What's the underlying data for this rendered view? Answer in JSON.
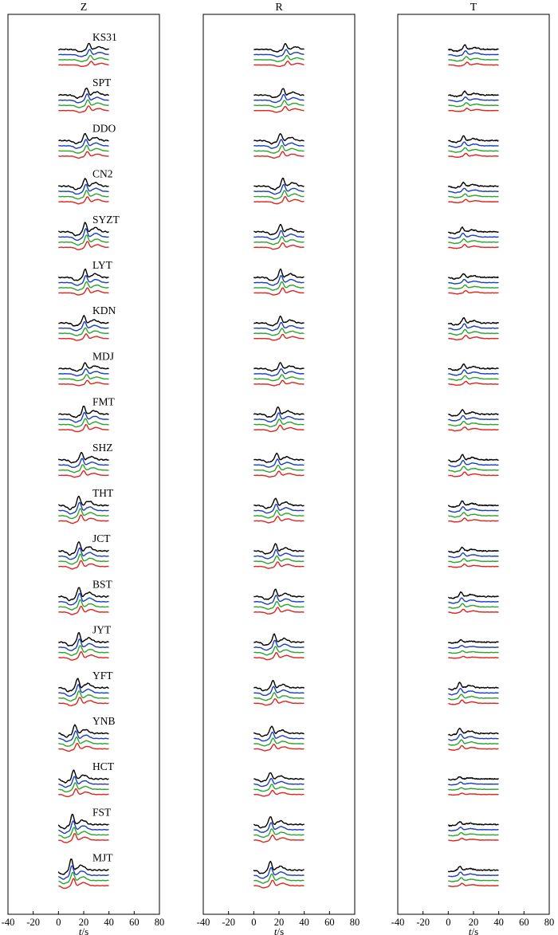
{
  "chart_data": {
    "type": "line",
    "description_units": "seconds",
    "panels": [
      {
        "title": "Z"
      },
      {
        "title": "R"
      },
      {
        "title": "T"
      }
    ],
    "xlabel_italic": "t",
    "xlabel_unit": "/s",
    "xlim": [
      -40,
      80
    ],
    "xticks": [
      "-40",
      "-20",
      "0",
      "20",
      "40",
      "60",
      "80"
    ],
    "trace_window": [
      0,
      40
    ],
    "series": [
      {
        "name": "trace-1",
        "color": "#000000"
      },
      {
        "name": "trace-2",
        "color": "#1a3fbf"
      },
      {
        "name": "trace-3",
        "color": "#2ca52c"
      },
      {
        "name": "trace-4",
        "color": "#e0241f"
      }
    ],
    "stations": [
      "KS31",
      "SPT",
      "DDO",
      "CN2",
      "SYZT",
      "LYT",
      "KDN",
      "MDJ",
      "FMT",
      "SHZ",
      "THT",
      "JCT",
      "BST",
      "JYT",
      "YFT",
      "YNB",
      "HCT",
      "FST",
      "MJT"
    ],
    "peak_time": {
      "Z": [
        25,
        23,
        22,
        22,
        22,
        22,
        21,
        22,
        21,
        19,
        17,
        17,
        17,
        17,
        16,
        14,
        13,
        12,
        11
      ],
      "R": [
        26,
        24,
        22,
        24,
        22,
        22,
        22,
        22,
        20,
        19,
        18,
        18,
        18,
        17,
        16,
        15,
        14,
        14,
        14
      ],
      "T": [
        14,
        14,
        13,
        13,
        12,
        13,
        13,
        13,
        12,
        12,
        12,
        12,
        11,
        11,
        10,
        10,
        10,
        10,
        10
      ]
    },
    "amplitude": {
      "Z": [
        0.8,
        1.0,
        1.0,
        1.1,
        1.3,
        1.1,
        1.0,
        0.8,
        1.1,
        1.0,
        1.3,
        1.3,
        1.3,
        1.3,
        1.3,
        1.2,
        1.2,
        1.4,
        1.5
      ],
      "R": [
        0.8,
        0.9,
        1.0,
        1.1,
        1.0,
        1.1,
        0.9,
        0.8,
        1.0,
        0.9,
        1.0,
        1.0,
        1.0,
        1.1,
        1.0,
        1.0,
        0.9,
        1.1,
        1.2
      ],
      "T": [
        0.6,
        0.5,
        0.6,
        0.5,
        0.6,
        0.5,
        0.7,
        0.6,
        0.6,
        0.7,
        0.6,
        0.5,
        0.6,
        0.3,
        0.7,
        0.7,
        0.3,
        0.4,
        0.5
      ]
    }
  }
}
